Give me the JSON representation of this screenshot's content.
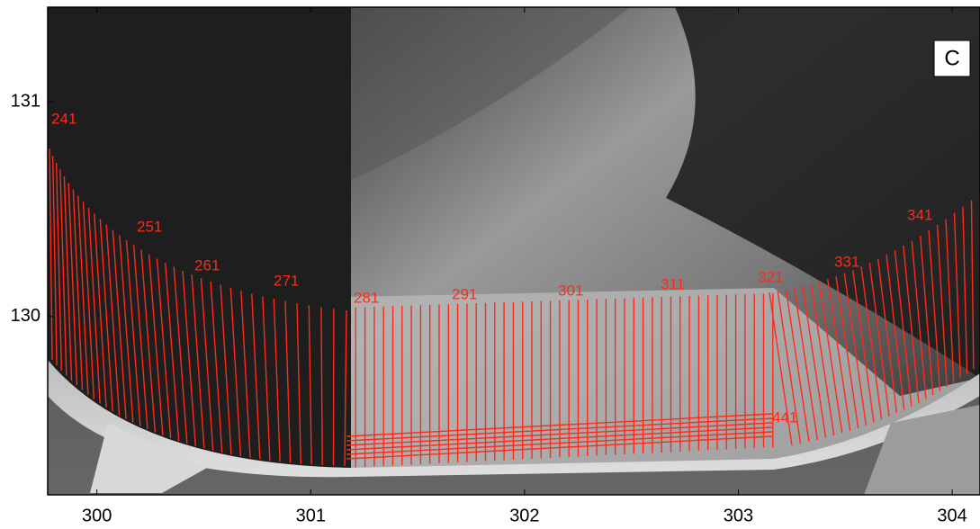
{
  "panel_label": "C",
  "x_axis": {
    "lim": [
      299.77,
      304.13
    ],
    "ticks": [
      300,
      301,
      302,
      303,
      304
    ]
  },
  "y_axis": {
    "lim": [
      129.17,
      131.44
    ],
    "ticks": [
      130,
      131
    ]
  },
  "transect_labels": [
    "241",
    "251",
    "261",
    "271",
    "281",
    "291",
    "301",
    "311",
    "321",
    "331",
    "341",
    "441"
  ]
}
